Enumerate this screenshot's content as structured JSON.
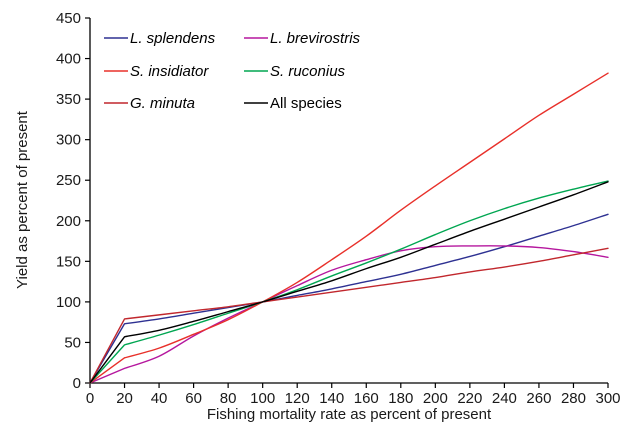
{
  "chart_data": {
    "type": "line",
    "title": "",
    "xlabel": "Fishing mortality rate as percent of present",
    "ylabel": "Yield as percent of present",
    "xlim": [
      0,
      300
    ],
    "ylim": [
      0,
      450
    ],
    "x_ticks": [
      0,
      20,
      40,
      60,
      80,
      100,
      120,
      140,
      160,
      180,
      200,
      220,
      240,
      260,
      280,
      300
    ],
    "y_ticks": [
      0,
      50,
      100,
      150,
      200,
      250,
      300,
      350,
      400,
      450
    ],
    "grid": false,
    "legend_position": "top-left",
    "series": [
      {
        "name": "L. splendens",
        "italic": true,
        "color": "#2e3192",
        "x": [
          0,
          20,
          40,
          60,
          80,
          100,
          120,
          140,
          160,
          180,
          200,
          220,
          240,
          260,
          280,
          300
        ],
        "y": [
          0,
          73,
          79,
          86,
          93,
          100,
          108,
          116,
          125,
          134,
          145,
          156,
          168,
          181,
          194,
          208
        ]
      },
      {
        "name": "L. brevirostris",
        "italic": true,
        "color": "#b5179e",
        "x": [
          0,
          20,
          40,
          60,
          80,
          100,
          120,
          140,
          160,
          180,
          200,
          220,
          240,
          260,
          280,
          300
        ],
        "y": [
          0,
          18,
          33,
          58,
          80,
          100,
          120,
          139,
          152,
          163,
          168,
          169,
          169,
          167,
          162,
          155
        ]
      },
      {
        "name": "S. insidiator",
        "italic": true,
        "color": "#e8302a",
        "x": [
          0,
          20,
          40,
          60,
          80,
          100,
          120,
          140,
          160,
          180,
          200,
          220,
          240,
          260,
          280,
          300
        ],
        "y": [
          0,
          31,
          43,
          60,
          78,
          100,
          124,
          152,
          181,
          213,
          243,
          272,
          301,
          330,
          356,
          382
        ]
      },
      {
        "name": "S. ruconius",
        "italic": true,
        "color": "#00a651",
        "x": [
          0,
          20,
          40,
          60,
          80,
          100,
          120,
          140,
          160,
          180,
          200,
          220,
          240,
          260,
          280,
          300
        ],
        "y": [
          0,
          47,
          59,
          72,
          86,
          100,
          115,
          132,
          148,
          165,
          183,
          200,
          215,
          228,
          239,
          249
        ]
      },
      {
        "name": "G. minuta",
        "italic": true,
        "color": "#c1272d",
        "x": [
          0,
          20,
          40,
          60,
          80,
          100,
          120,
          140,
          160,
          180,
          200,
          220,
          240,
          260,
          280,
          300
        ],
        "y": [
          0,
          79,
          84,
          89,
          94,
          100,
          106,
          112,
          118,
          124,
          130,
          137,
          143,
          150,
          158,
          166
        ]
      },
      {
        "name": "All species",
        "italic": false,
        "color": "#000000",
        "x": [
          0,
          20,
          40,
          60,
          80,
          100,
          120,
          140,
          160,
          180,
          200,
          220,
          240,
          260,
          280,
          300
        ],
        "y": [
          0,
          57,
          65,
          76,
          88,
          100,
          113,
          126,
          141,
          155,
          171,
          187,
          202,
          217,
          232,
          248
        ]
      }
    ]
  }
}
